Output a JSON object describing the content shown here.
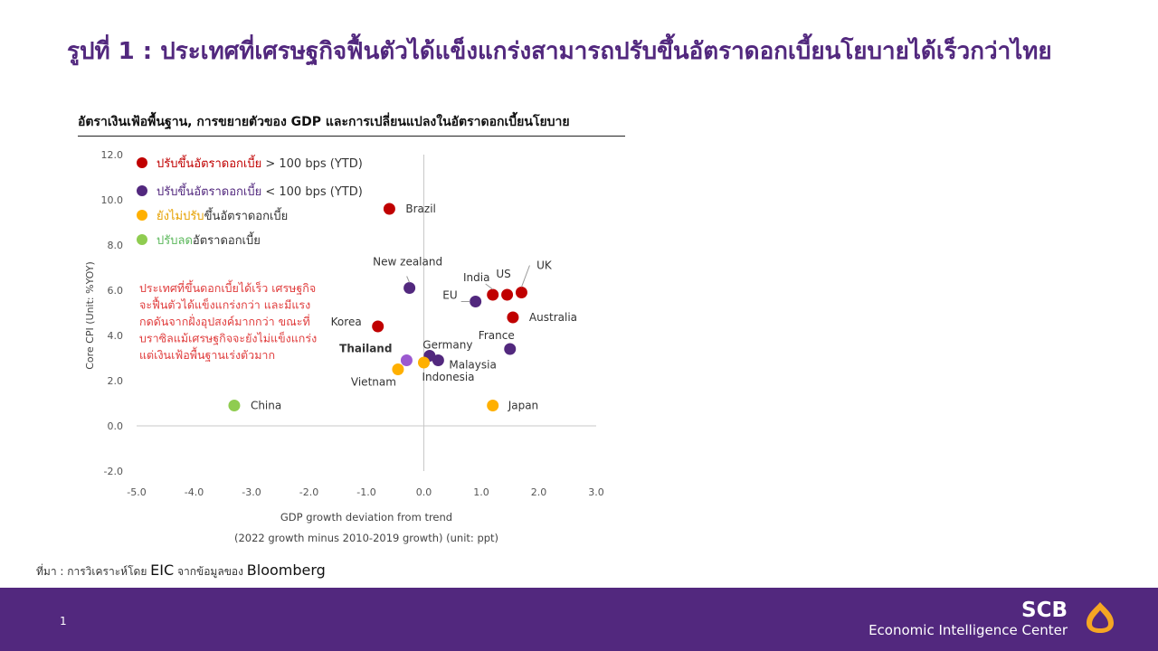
{
  "slide": {
    "title": "รูปที่ 1 : ประเทศที่เศรษฐกิจฟื้นตัวได้แข็งแกร่งสามารถปรับขึ้นอัตราดอกเบี้ยนโยบายได้เร็วกว่าไทย",
    "page_number": "1"
  },
  "source": {
    "prefix": "ที่มา : การวิเคราะห์โดย ",
    "eic": "EIC",
    "middle": " จากข้อมูลของ ",
    "bloomberg": "Bloomberg"
  },
  "brand": {
    "name": "SCB",
    "sub": "Economic Intelligence Center",
    "color": "#f5a623"
  },
  "chart_data": {
    "type": "scatter",
    "title": "อัตราเงินเฟ้อพื้นฐาน, การขยายตัวของ GDP และการเปลี่ยนแปลงในอัตราดอกเบี้ยนโยบาย",
    "xlabel": "GDP growth deviation from trend",
    "xlabel2": "(2022 growth minus 2010-2019 growth) (unit: ppt)",
    "ylabel": "Core CPI (Unit: %YOY)",
    "xlim": [
      -5,
      3
    ],
    "ylim": [
      -2,
      12
    ],
    "xticks": [
      "-5.0",
      "-4.0",
      "-3.0",
      "-2.0",
      "-1.0",
      "0.0",
      "1.0",
      "2.0",
      "3.0"
    ],
    "yticks": [
      "12.0",
      "10.0",
      "8.0",
      "6.0",
      "4.0",
      "2.0",
      "0.0",
      "-2.0"
    ],
    "grid": false,
    "legend": [
      {
        "id": "hike_gt100",
        "color": "#c00000",
        "parts": [
          [
            "ปรับขึ้นอัตราดอกเบี้ย",
            "#c00000"
          ],
          [
            " > 100 bps (YTD)",
            "#333333"
          ]
        ]
      },
      {
        "id": "hike_lt100",
        "color": "#52287e",
        "parts": [
          [
            "ปรับขึ้นอัตราดอกเบี้ย",
            "#52287e"
          ],
          [
            " < 100 bps (YTD)",
            "#333333"
          ]
        ]
      },
      {
        "id": "no_hike",
        "color": "#ffb000",
        "parts": [
          [
            "ยังไม่ปรับ",
            "#e6a100"
          ],
          [
            "ขึ้นอัตราดอกเบี้ย",
            "#333333"
          ]
        ]
      },
      {
        "id": "cut",
        "color": "#8fcc50",
        "parts": [
          [
            "ปรับลด",
            "#5cb85c"
          ],
          [
            "อัตราดอกเบี้ย",
            "#333333"
          ]
        ]
      }
    ],
    "annotation": [
      "ประเทศที่ขึ้นดอกเบี้ยได้เร็ว เศรษฐกิจ",
      "จะฟื้นตัวได้แข็งแกร่งกว่า และมีแรง",
      "กดดันจากฝั่งอุปสงค์มากกว่า ขณะที่",
      "บราซิลแม้เศรษฐกิจจะยังไม่แข็งแกร่ง",
      "แต่เงินเฟ้อพื้นฐานเร่งตัวมาก"
    ],
    "annotation_color": "#e03c3c",
    "points": [
      {
        "label": "Brazil",
        "x": -0.6,
        "y": 9.6,
        "group": "hike_gt100"
      },
      {
        "label": "New zealand",
        "x": -0.25,
        "y": 6.1,
        "group": "hike_lt100"
      },
      {
        "label": "India",
        "x": 1.2,
        "y": 5.8,
        "group": "hike_gt100"
      },
      {
        "label": "US",
        "x": 1.45,
        "y": 5.8,
        "group": "hike_gt100"
      },
      {
        "label": "UK",
        "x": 1.7,
        "y": 5.9,
        "group": "hike_gt100"
      },
      {
        "label": "EU",
        "x": 0.9,
        "y": 5.5,
        "group": "hike_lt100"
      },
      {
        "label": "Australia",
        "x": 1.55,
        "y": 4.8,
        "group": "hike_gt100"
      },
      {
        "label": "Korea",
        "x": -0.8,
        "y": 4.4,
        "group": "hike_gt100"
      },
      {
        "label": "France",
        "x": 1.5,
        "y": 3.4,
        "group": "hike_lt100"
      },
      {
        "label": "Germany",
        "x": 0.1,
        "y": 3.1,
        "group": "hike_lt100"
      },
      {
        "label": "Thailand",
        "x": -0.3,
        "y": 2.9,
        "group": "hike_lt100",
        "bold": true,
        "color": "#9b59d0"
      },
      {
        "label": "Malaysia",
        "x": 0.25,
        "y": 2.9,
        "group": "hike_lt100"
      },
      {
        "label": "Indonesia",
        "x": 0.0,
        "y": 2.8,
        "group": "no_hike"
      },
      {
        "label": "Vietnam",
        "x": -0.45,
        "y": 2.5,
        "group": "no_hike"
      },
      {
        "label": "China",
        "x": -3.3,
        "y": 0.9,
        "group": "cut"
      },
      {
        "label": "Japan",
        "x": 1.2,
        "y": 0.9,
        "group": "no_hike"
      }
    ]
  }
}
